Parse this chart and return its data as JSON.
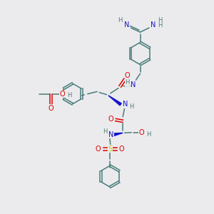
{
  "bg_color": "#ebebed",
  "bc": "#4a7c7a",
  "nc": "#1515cc",
  "oc": "#dd0000",
  "sc": "#cccc00",
  "lw": 1.1,
  "fs": 7.0,
  "fs_small": 6.0,
  "figsize": [
    3.0,
    3.0
  ],
  "dpi": 100,
  "xlim": [
    0,
    10
  ],
  "ylim": [
    0,
    10
  ]
}
